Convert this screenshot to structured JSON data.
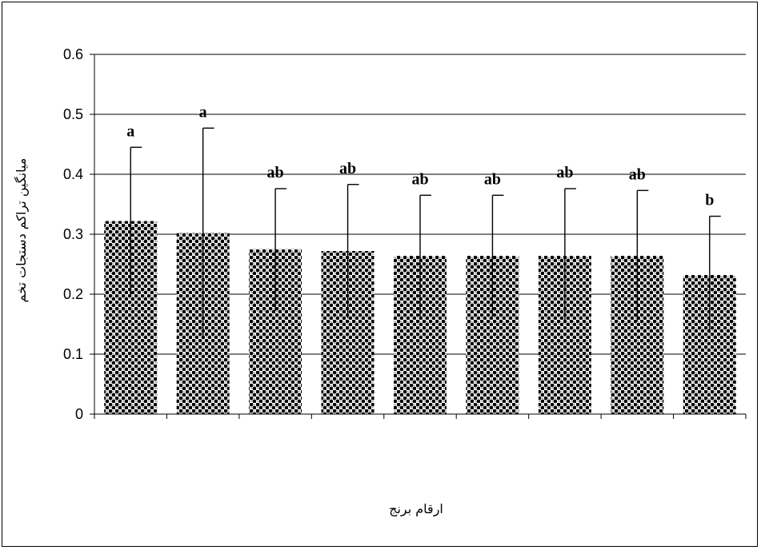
{
  "chart_data": {
    "type": "bar",
    "title": "",
    "xlabel": "ارقام برنج",
    "ylabel": "میانگین تراکم دستجات تخم",
    "ylim": [
      0,
      0.6
    ],
    "yticks": [
      "0",
      "0.1",
      "0.2",
      "0.3",
      "0.4",
      "0.5",
      "0.6"
    ],
    "categories": [
      "",
      "",
      "",
      "",
      "",
      "",
      "",
      "",
      ""
    ],
    "values": [
      0.322,
      0.302,
      0.275,
      0.272,
      0.264,
      0.264,
      0.264,
      0.264,
      0.232
    ],
    "error_upper": [
      0.445,
      0.477,
      0.376,
      0.383,
      0.365,
      0.365,
      0.376,
      0.373,
      0.33
    ],
    "error_lower": [
      0.197,
      0.125,
      0.172,
      0.16,
      0.163,
      0.163,
      0.152,
      0.155,
      0.135
    ],
    "significance": [
      "a",
      "a",
      "ab",
      "ab",
      "ab",
      "ab",
      "ab",
      "ab",
      "b"
    ],
    "grid": true,
    "bar_pattern": "checkered-dots",
    "bar_color": "#000000"
  }
}
